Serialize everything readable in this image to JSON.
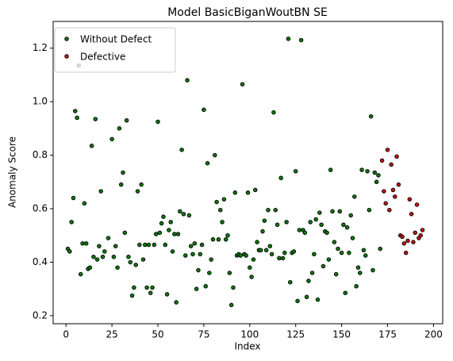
{
  "chart_data": {
    "type": "scatter",
    "title": "Model BasicBiganWoutBN SE",
    "xlabel": "Index",
    "ylabel": "Anomaly Score",
    "xlim": [
      -7,
      205
    ],
    "ylim": [
      0.17,
      1.3
    ],
    "xticks": [
      0,
      25,
      50,
      75,
      100,
      125,
      150,
      175,
      200
    ],
    "yticks": [
      0.2,
      0.4,
      0.6,
      0.8,
      {
        "value": 1,
        "label": "1.0"
      },
      1.2
    ],
    "legend": "upper left",
    "grid": false,
    "series": [
      {
        "name": "Without Defect",
        "color": "#0b7a0b",
        "x": [
          1,
          2,
          3,
          4,
          5,
          6,
          7,
          8,
          9,
          10,
          11,
          12,
          13,
          14,
          15,
          16,
          17,
          18,
          19,
          20,
          21,
          23,
          25,
          26,
          27,
          28,
          29,
          30,
          31,
          32,
          33,
          34,
          35,
          36,
          37,
          38,
          39,
          40,
          41,
          42,
          43,
          44,
          45,
          46,
          47,
          48,
          49,
          50,
          51,
          52,
          53,
          54,
          55,
          56,
          57,
          58,
          59,
          60,
          61,
          62,
          63,
          64,
          65,
          66,
          67,
          68,
          69,
          70,
          71,
          72,
          73,
          74,
          75,
          76,
          77,
          78,
          79,
          80,
          81,
          82,
          83,
          84,
          85,
          86,
          87,
          88,
          89,
          90,
          91,
          92,
          93,
          94,
          95,
          96,
          97,
          98,
          99,
          100,
          101,
          102,
          103,
          104,
          105,
          106,
          107,
          108,
          109,
          110,
          111,
          112,
          113,
          114,
          115,
          116,
          117,
          118,
          119,
          120,
          121,
          122,
          123,
          124,
          125,
          126,
          127,
          128,
          129,
          130,
          131,
          132,
          133,
          134,
          135,
          136,
          137,
          138,
          139,
          140,
          141,
          142,
          143,
          144,
          145,
          146,
          147,
          148,
          149,
          150,
          151,
          152,
          153,
          154,
          155,
          156,
          157,
          158,
          159,
          160,
          161,
          162,
          163,
          164,
          165,
          166,
          167,
          168,
          169,
          170,
          171
        ],
        "values": [
          0.45,
          0.44,
          0.55,
          0.64,
          0.965,
          0.94,
          1.135,
          0.355,
          0.47,
          0.62,
          0.47,
          0.375,
          0.38,
          0.835,
          0.42,
          0.935,
          0.41,
          0.46,
          0.665,
          0.42,
          0.44,
          0.49,
          0.86,
          0.42,
          0.46,
          0.38,
          0.9,
          0.69,
          0.735,
          0.51,
          0.93,
          0.42,
          0.4,
          0.275,
          0.305,
          0.39,
          0.665,
          0.465,
          0.69,
          0.41,
          0.465,
          0.305,
          0.465,
          0.285,
          0.305,
          0.465,
          0.505,
          0.925,
          0.51,
          0.545,
          0.57,
          0.465,
          0.28,
          0.52,
          0.55,
          0.44,
          0.505,
          0.25,
          0.505,
          0.59,
          0.82,
          0.58,
          0.425,
          1.08,
          0.575,
          0.46,
          0.43,
          0.47,
          0.3,
          0.37,
          0.43,
          0.465,
          0.97,
          0.31,
          0.77,
          0.36,
          0.41,
          0.485,
          0.8,
          0.625,
          0.485,
          0.595,
          0.55,
          0.635,
          0.485,
          0.5,
          0.36,
          0.24,
          0.305,
          0.66,
          0.425,
          0.43,
          0.425,
          1.065,
          0.43,
          0.425,
          0.66,
          0.38,
          0.345,
          0.41,
          0.67,
          0.475,
          0.445,
          0.445,
          0.515,
          0.555,
          0.445,
          0.595,
          0.46,
          0.43,
          0.96,
          0.595,
          0.54,
          0.415,
          0.715,
          0.415,
          0.435,
          0.55,
          1.235,
          0.325,
          0.435,
          0.44,
          0.74,
          0.255,
          0.52,
          1.23,
          0.52,
          0.51,
          0.27,
          0.33,
          0.55,
          0.36,
          0.43,
          0.56,
          0.26,
          0.585,
          0.54,
          0.385,
          0.515,
          0.51,
          0.41,
          0.745,
          0.59,
          0.475,
          0.355,
          0.45,
          0.59,
          0.435,
          0.54,
          0.285,
          0.53,
          0.435,
          0.575,
          0.49,
          0.645,
          0.31,
          0.38,
          0.36,
          0.745,
          0.445,
          0.425,
          0.74,
          0.595,
          0.945,
          0.37,
          0.735,
          0.7,
          0.725,
          0.45
        ]
      },
      {
        "name": "Defective",
        "color": "#c81414",
        "x": [
          172,
          173,
          174,
          175,
          176,
          177,
          178,
          179,
          180,
          181,
          182,
          183,
          184,
          185,
          186,
          187,
          188,
          189,
          190,
          191,
          192,
          193,
          194
        ],
        "values": [
          0.78,
          0.665,
          0.62,
          0.82,
          0.595,
          0.765,
          0.67,
          0.645,
          0.795,
          0.69,
          0.5,
          0.495,
          0.47,
          0.435,
          0.48,
          0.635,
          0.58,
          0.475,
          0.51,
          0.615,
          0.49,
          0.5,
          0.52
        ]
      }
    ]
  }
}
